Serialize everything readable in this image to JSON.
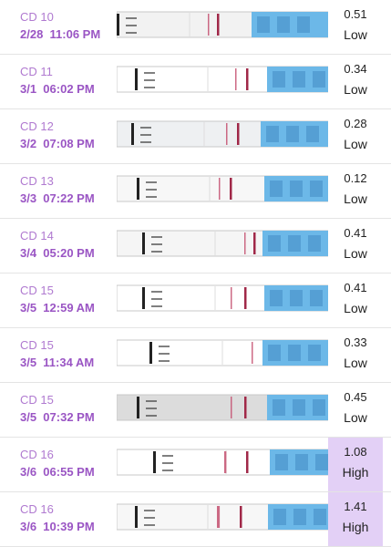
{
  "rows": [
    {
      "cd": "CD 10",
      "time": "2/28  11:06 PM",
      "value": "0.51",
      "level": "Low"
    },
    {
      "cd": "CD 11",
      "time": "3/1  06:02 PM",
      "value": "0.34",
      "level": "Low"
    },
    {
      "cd": "CD 12",
      "time": "3/2  07:08 PM",
      "value": "0.28",
      "level": "Low"
    },
    {
      "cd": "CD 13",
      "time": "3/3  07:22 PM",
      "value": "0.12",
      "level": "Low"
    },
    {
      "cd": "CD 14",
      "time": "3/4  05:20 PM",
      "value": "0.41",
      "level": "Low"
    },
    {
      "cd": "CD 15",
      "time": "3/5  12:59 AM",
      "value": "0.41",
      "level": "Low"
    },
    {
      "cd": "CD 15",
      "time": "3/5  11:34 AM",
      "value": "0.33",
      "level": "Low"
    },
    {
      "cd": "CD 15",
      "time": "3/5  07:32 PM",
      "value": "0.45",
      "level": "Low"
    },
    {
      "cd": "CD 16",
      "time": "3/6  06:55 PM",
      "value": "1.08",
      "level": "High"
    },
    {
      "cd": "CD 16",
      "time": "3/6  10:39 PM",
      "value": "1.41",
      "level": "High"
    }
  ]
}
